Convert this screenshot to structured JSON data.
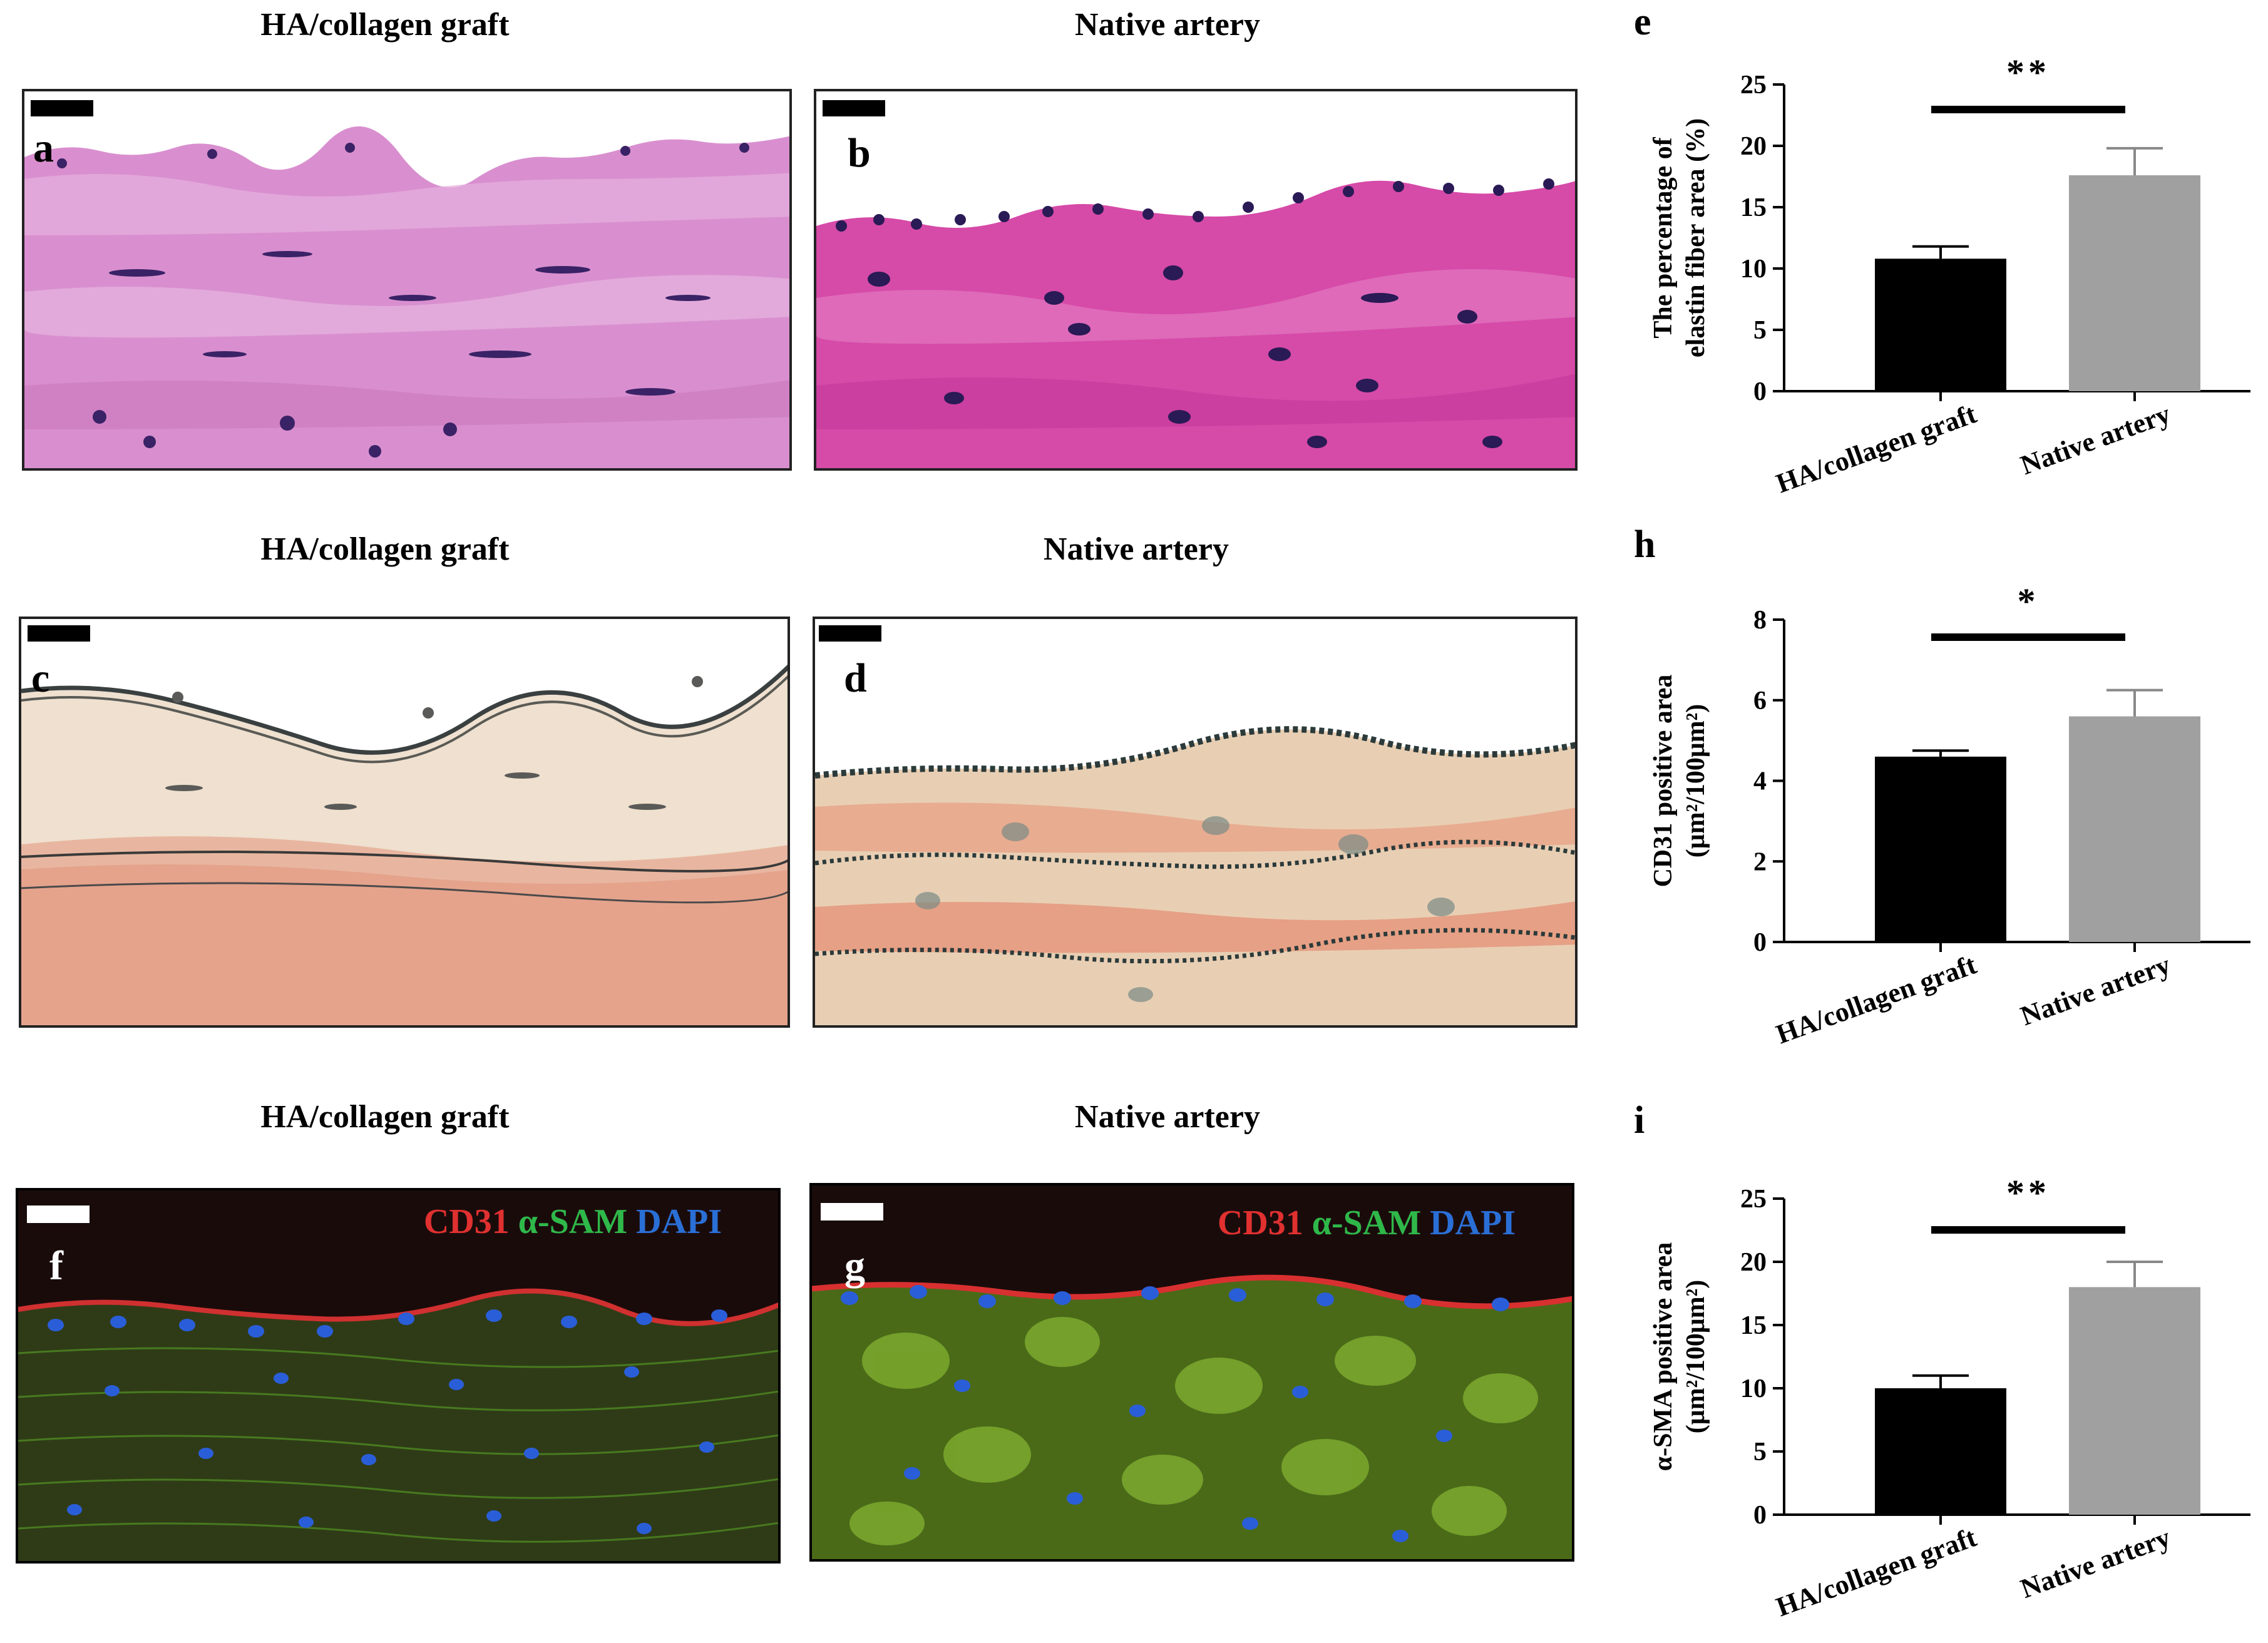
{
  "column_titles": {
    "he_left": "HA/collagen graft",
    "he_right": "Native artery",
    "ev_left": "HA/collagen graft",
    "ev_right": "Native artery",
    "if_left": "HA/collagen graft",
    "if_right": "Native artery"
  },
  "panels": {
    "a": "a",
    "b": "b",
    "c": "c",
    "d": "d",
    "f": "f",
    "g": "g"
  },
  "fluorescence_labels": {
    "cd31": "CD31",
    "asam": "α-SAM",
    "dapi": "DAPI"
  },
  "colors": {
    "he_bg": "#d88fcf",
    "he_native": "#d64aa8",
    "ev_bg": "#efe0cf",
    "ev_native": "#e8c8a8",
    "if_bg": "#1a0b0b",
    "cd31": "#e03030",
    "asam": "#2fb84a",
    "dapi": "#2a6fd6",
    "bar_graft": "#000000",
    "bar_native": "#a0a0a0"
  },
  "chart_data": [
    {
      "letter": "e",
      "type": "bar",
      "categories": [
        "HA/collagen graft",
        "Native artery"
      ],
      "values": [
        10.8,
        17.6
      ],
      "errors": [
        1.0,
        2.2
      ],
      "ylim": [
        0,
        25
      ],
      "yticks": [
        "0",
        "5",
        "10",
        "15",
        "20",
        "25"
      ],
      "ylabel_line1": "The percentage of",
      "ylabel_line2": "elastin fiber area (%)",
      "significance": "**"
    },
    {
      "letter": "h",
      "type": "bar",
      "categories": [
        "HA/collagen graft",
        "Native artery"
      ],
      "values": [
        4.6,
        5.6
      ],
      "errors": [
        0.15,
        0.65
      ],
      "ylim": [
        0,
        8
      ],
      "yticks": [
        "0",
        "2",
        "4",
        "6",
        "8"
      ],
      "ylabel_line1": "CD31 positive area",
      "ylabel_line2": "(μm²/100μm²)",
      "significance": "*"
    },
    {
      "letter": "i",
      "type": "bar",
      "categories": [
        "HA/collagen graft",
        "Native artery"
      ],
      "values": [
        10.0,
        18.0
      ],
      "errors": [
        1.0,
        2.0
      ],
      "ylim": [
        0,
        25
      ],
      "yticks": [
        "0",
        "5",
        "10",
        "15",
        "20",
        "25"
      ],
      "ylabel_line1": "α-SMA positive area",
      "ylabel_line2": "(μm²/100μm²)",
      "significance": "**"
    }
  ]
}
